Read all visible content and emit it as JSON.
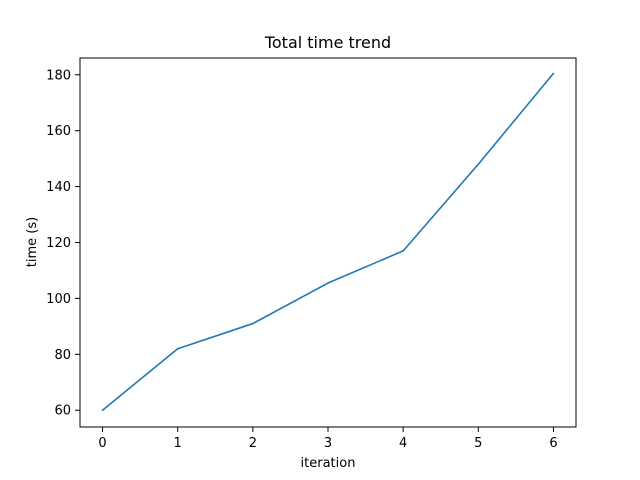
{
  "chart_data": {
    "type": "line",
    "title": "Total time trend",
    "xlabel": "iteration",
    "ylabel": "time (s)",
    "x": [
      0,
      1,
      2,
      3,
      4,
      5,
      6
    ],
    "series": [
      {
        "values": [
          60,
          82,
          91,
          105.5,
          117,
          148,
          180.5
        ],
        "color": "#1f77b4"
      }
    ],
    "xlim": [
      -0.3,
      6.3
    ],
    "ylim": [
      54,
      186
    ],
    "xticks": [
      0,
      1,
      2,
      3,
      4,
      5,
      6
    ],
    "yticks": [
      60,
      80,
      100,
      120,
      140,
      160,
      180
    ],
    "grid": false,
    "legend": "none"
  }
}
